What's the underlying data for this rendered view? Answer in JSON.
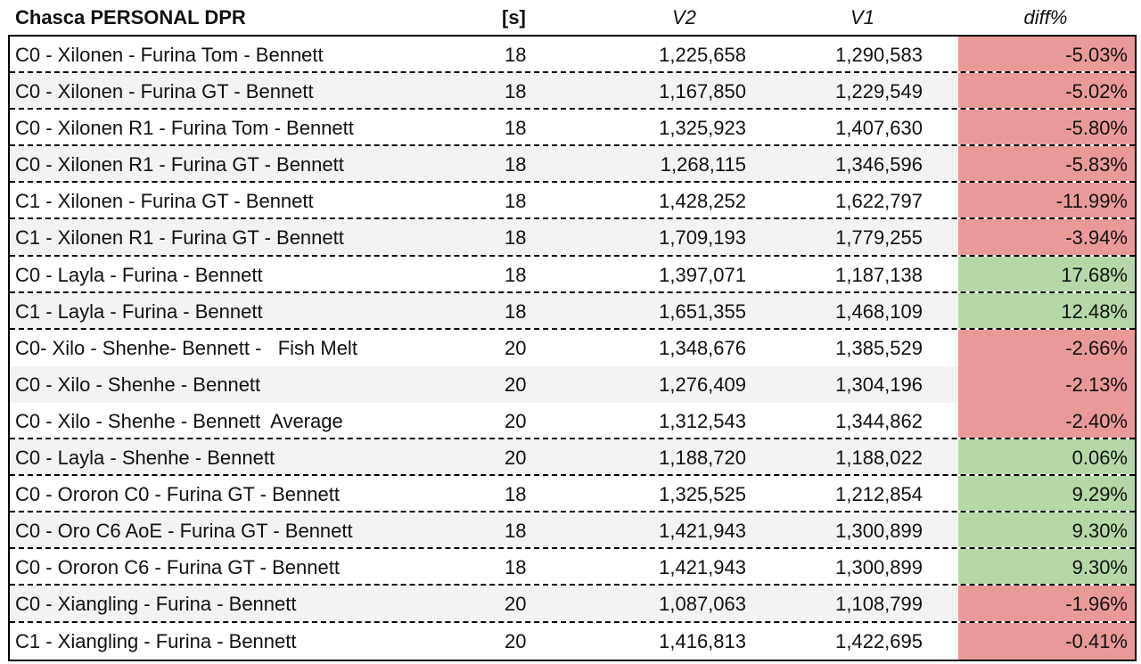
{
  "header": {
    "title": "Chasca PERSONAL DPR",
    "seconds": "[s]",
    "v2": "V2",
    "v1": "V1",
    "diff": "diff%"
  },
  "colors": {
    "negative": "#ea9999",
    "positive": "#b6d7a8",
    "alt_row": "#f3f3f3"
  },
  "rows": [
    {
      "name": "C0 - Xilonen - Furina Tom - Bennett",
      "s": "18",
      "v2": "1,225,658",
      "v1": "1,290,583",
      "diff": "-5.03%",
      "sign": "neg"
    },
    {
      "name": "C0 - Xilonen - Furina GT - Bennett",
      "s": "18",
      "v2": "1,167,850",
      "v1": "1,229,549",
      "diff": "-5.02%",
      "sign": "neg"
    },
    {
      "name": "C0 - Xilonen R1 - Furina Tom - Bennett",
      "s": "18",
      "v2": "1,325,923",
      "v1": "1,407,630",
      "diff": "-5.80%",
      "sign": "neg"
    },
    {
      "name": "C0 - Xilonen R1 - Furina GT - Bennett",
      "s": "18",
      "v2": "1,268,115",
      "v1": "1,346,596",
      "diff": "-5.83%",
      "sign": "neg"
    },
    {
      "name": "C1 - Xilonen - Furina GT - Bennett",
      "s": "18",
      "v2": "1,428,252",
      "v1": "1,622,797",
      "diff": "-11.99%",
      "sign": "neg"
    },
    {
      "name": "C1 - Xilonen R1 - Furina GT - Bennett",
      "s": "18",
      "v2": "1,709,193",
      "v1": "1,779,255",
      "diff": "-3.94%",
      "sign": "neg"
    },
    {
      "name": "C0 - Layla - Furina - Bennett",
      "s": "18",
      "v2": "1,397,071",
      "v1": "1,187,138",
      "diff": "17.68%",
      "sign": "pos"
    },
    {
      "name": "C1 - Layla - Furina - Bennett",
      "s": "18",
      "v2": "1,651,355",
      "v1": "1,468,109",
      "diff": "12.48%",
      "sign": "pos"
    },
    {
      "name": "C0- Xilo - Shenhe- Bennett -   Fish Melt",
      "s": "20",
      "v2": "1,348,676",
      "v1": "1,385,529",
      "diff": "-2.66%",
      "sign": "neg",
      "nosep": true
    },
    {
      "name": "C0 - Xilo - Shenhe - Bennett",
      "s": "20",
      "v2": "1,276,409",
      "v1": "1,304,196",
      "diff": "-2.13%",
      "sign": "neg",
      "nosep": true
    },
    {
      "name": "C0 - Xilo - Shenhe - Bennett  Average",
      "s": "20",
      "v2": "1,312,543",
      "v1": "1,344,862",
      "diff": "-2.40%",
      "sign": "neg"
    },
    {
      "name": "C0 - Layla - Shenhe - Bennett",
      "s": "20",
      "v2": "1,188,720",
      "v1": "1,188,022",
      "diff": "0.06%",
      "sign": "pos"
    },
    {
      "name": "C0 - Ororon C0 - Furina GT - Bennett",
      "s": "18",
      "v2": "1,325,525",
      "v1": "1,212,854",
      "diff": "9.29%",
      "sign": "pos"
    },
    {
      "name": "C0 - Oro C6 AoE - Furina GT - Bennett",
      "s": "18",
      "v2": "1,421,943",
      "v1": "1,300,899",
      "diff": "9.30%",
      "sign": "pos"
    },
    {
      "name": "C0 - Ororon C6 - Furina GT - Bennett",
      "s": "18",
      "v2": "1,421,943",
      "v1": "1,300,899",
      "diff": "9.30%",
      "sign": "pos"
    },
    {
      "name": "C0 - Xiangling - Furina - Bennett",
      "s": "20",
      "v2": "1,087,063",
      "v1": "1,108,799",
      "diff": "-1.96%",
      "sign": "neg"
    },
    {
      "name": "C1 - Xiangling - Furina - Bennett",
      "s": "20",
      "v2": "1,416,813",
      "v1": "1,422,695",
      "diff": "-0.41%",
      "sign": "neg"
    }
  ]
}
